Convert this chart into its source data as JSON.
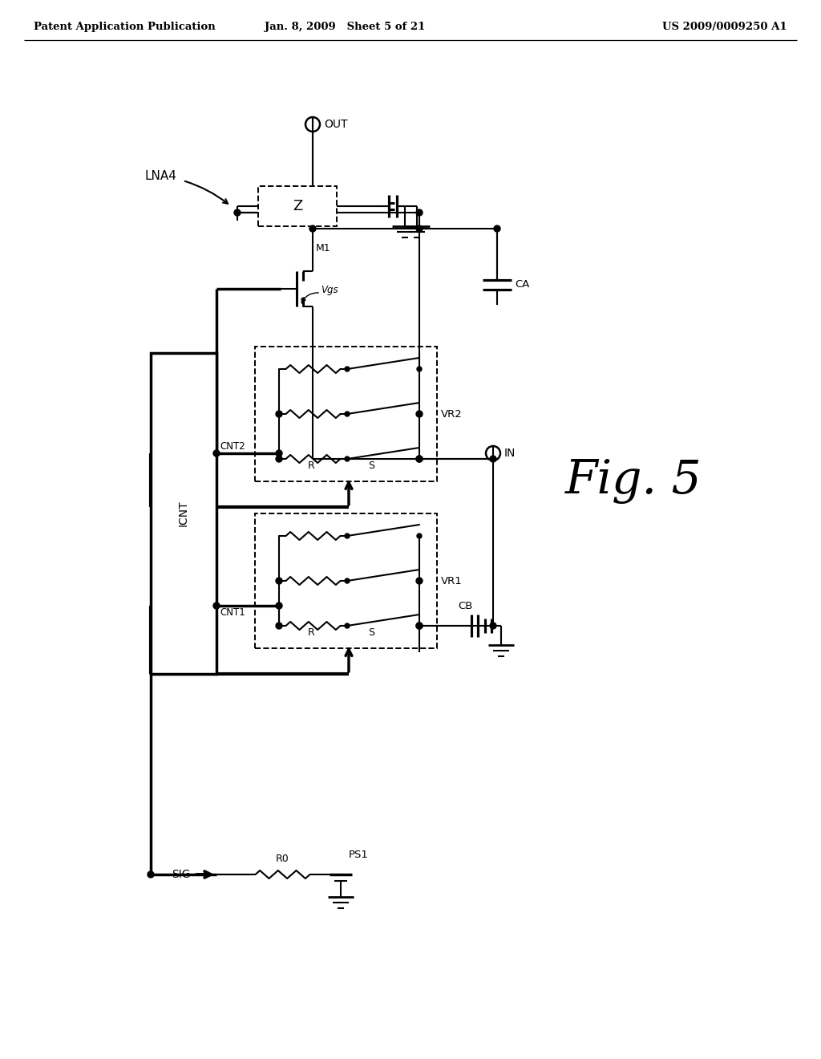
{
  "bg_color": "#ffffff",
  "header_left": "Patent Application Publication",
  "header_mid": "Jan. 8, 2009   Sheet 5 of 21",
  "header_right": "US 2009/0009250 A1",
  "fig_label": "Fig. 5",
  "lna4": "LNA4",
  "icnt": "ICNT",
  "cnt1": "CNT1",
  "cnt2": "CNT2",
  "out": "OUT",
  "in": "IN",
  "sig": "SIG",
  "m1": "M1",
  "vgs": "Vgs",
  "z": "Z",
  "vr1": "VR1",
  "vr2": "VR2",
  "ca": "CA",
  "cb": "CB",
  "r0": "R0",
  "ps1": "PS1",
  "r": "R",
  "s": "S"
}
